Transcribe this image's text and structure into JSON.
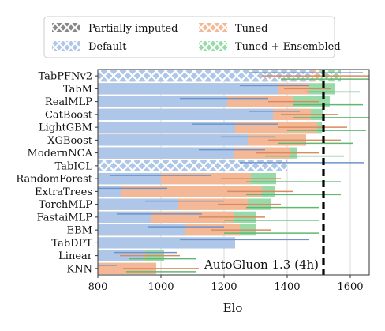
{
  "chart_data": {
    "type": "bar",
    "xlabel": "Elo",
    "xlim": [
      800,
      1660
    ],
    "xticks": [
      800,
      1000,
      1200,
      1400,
      1600
    ],
    "grid": true,
    "legend_placement": "top",
    "legend": [
      {
        "key": "partially_imputed",
        "label": "Partially imputed"
      },
      {
        "key": "tuned",
        "label": "Tuned"
      },
      {
        "key": "default",
        "label": "Default"
      },
      {
        "key": "ensembled",
        "label": "Tuned + Ensembled"
      }
    ],
    "colors": {
      "default": "#aec7e8",
      "tuned": "#f4b896",
      "ensembled": "#98dba8",
      "default_err": "#6d93c9",
      "tuned_err": "#d98a5f",
      "ensembled_err": "#5fb872",
      "imputed_hatch": "#ffffff",
      "imputed_legend": "#888888",
      "reference_line": "#000000"
    },
    "reference": {
      "label": "AutoGluon 1.3 (4h)",
      "value": 1515
    },
    "models": [
      {
        "name": "TabPFNv2",
        "imputed": true,
        "default": 1480,
        "tuned": 1500,
        "ensembled": 1570,
        "default_err": [
          1280,
          1640
        ],
        "tuned_err": [
          1320,
          1660
        ],
        "ensembled_err": [
          1380,
          1660
        ]
      },
      {
        "name": "TabM",
        "imputed": false,
        "default": 1370,
        "tuned": 1470,
        "ensembled": 1550,
        "default_err": [
          1250,
          1470
        ],
        "tuned_err": [
          1390,
          1540
        ],
        "ensembled_err": [
          1460,
          1630
        ]
      },
      {
        "name": "RealMLP",
        "imputed": false,
        "default": 1210,
        "tuned": 1420,
        "ensembled": 1535,
        "default_err": [
          1060,
          1340
        ],
        "tuned_err": [
          1340,
          1500
        ],
        "ensembled_err": [
          1420,
          1640
        ]
      },
      {
        "name": "CatBoost",
        "imputed": false,
        "default": 1355,
        "tuned": 1475,
        "ensembled": 1515,
        "default_err": [
          1280,
          1440
        ],
        "tuned_err": [
          1380,
          1560
        ],
        "ensembled_err": [
          1420,
          1660
        ]
      },
      {
        "name": "LightGBM",
        "imputed": false,
        "default": 1235,
        "tuned": 1495,
        "ensembled": 1510,
        "default_err": [
          1100,
          1370
        ],
        "tuned_err": [
          1370,
          1590
        ],
        "ensembled_err": [
          1400,
          1650
        ]
      },
      {
        "name": "XGBoost",
        "imputed": false,
        "default": 1275,
        "tuned": 1460,
        "ensembled": 1460,
        "default_err": [
          1190,
          1360
        ],
        "tuned_err": [
          1340,
          1570
        ],
        "ensembled_err": [
          1370,
          1610
        ]
      },
      {
        "name": "ModernNCA",
        "imputed": false,
        "default": 1230,
        "tuned": 1410,
        "ensembled": 1430,
        "default_err": [
          1120,
          1330
        ],
        "tuned_err": [
          1300,
          1500
        ],
        "ensembled_err": [
          1330,
          1580
        ]
      },
      {
        "name": "TabICL",
        "imputed": true,
        "default": 1400,
        "tuned": null,
        "ensembled": null,
        "default_err": [
          1250,
          1645
        ],
        "tuned_err": null,
        "ensembled_err": null
      },
      {
        "name": "RandomForest",
        "imputed": false,
        "default": 1000,
        "tuned": 1285,
        "ensembled": 1365,
        "default_err": [
          840,
          1160
        ],
        "tuned_err": [
          1190,
          1380
        ],
        "ensembled_err": [
          1270,
          1570
        ]
      },
      {
        "name": "ExtraTrees",
        "imputed": false,
        "default": 875,
        "tuned": 1320,
        "ensembled": 1360,
        "default_err": [
          800,
          1020
        ],
        "tuned_err": [
          1210,
          1420
        ],
        "ensembled_err": [
          1270,
          1570
        ]
      },
      {
        "name": "TorchMLP",
        "imputed": false,
        "default": 1055,
        "tuned": 1275,
        "ensembled": 1350,
        "default_err": [
          950,
          1200
        ],
        "tuned_err": [
          1180,
          1380
        ],
        "ensembled_err": [
          1270,
          1500
        ]
      },
      {
        "name": "FastaiMLP",
        "imputed": false,
        "default": 970,
        "tuned": 1230,
        "ensembled": 1300,
        "default_err": [
          860,
          1130
        ],
        "tuned_err": [
          1120,
          1330
        ],
        "ensembled_err": [
          1200,
          1500
        ]
      },
      {
        "name": "EBM",
        "imputed": false,
        "default": 1075,
        "tuned": 1250,
        "ensembled": 1300,
        "default_err": [
          960,
          1200
        ],
        "tuned_err": [
          1160,
          1350
        ],
        "ensembled_err": [
          1200,
          1500
        ]
      },
      {
        "name": "TabDPT",
        "imputed": false,
        "default": 1235,
        "tuned": null,
        "ensembled": null,
        "default_err": [
          1060,
          1470
        ],
        "tuned_err": null,
        "ensembled_err": null
      },
      {
        "name": "Linear",
        "imputed": false,
        "default": 945,
        "tuned": 950,
        "ensembled": 1010,
        "default_err": [
          850,
          1050
        ],
        "tuned_err": [
          870,
          1060
        ],
        "ensembled_err": [
          900,
          1110
        ]
      },
      {
        "name": "KNN",
        "imputed": false,
        "default": 800,
        "tuned": 985,
        "ensembled": 985,
        "default_err": [
          800,
          860
        ],
        "tuned_err": [
          880,
          1120
        ],
        "ensembled_err": [
          890,
          1110
        ]
      }
    ]
  }
}
